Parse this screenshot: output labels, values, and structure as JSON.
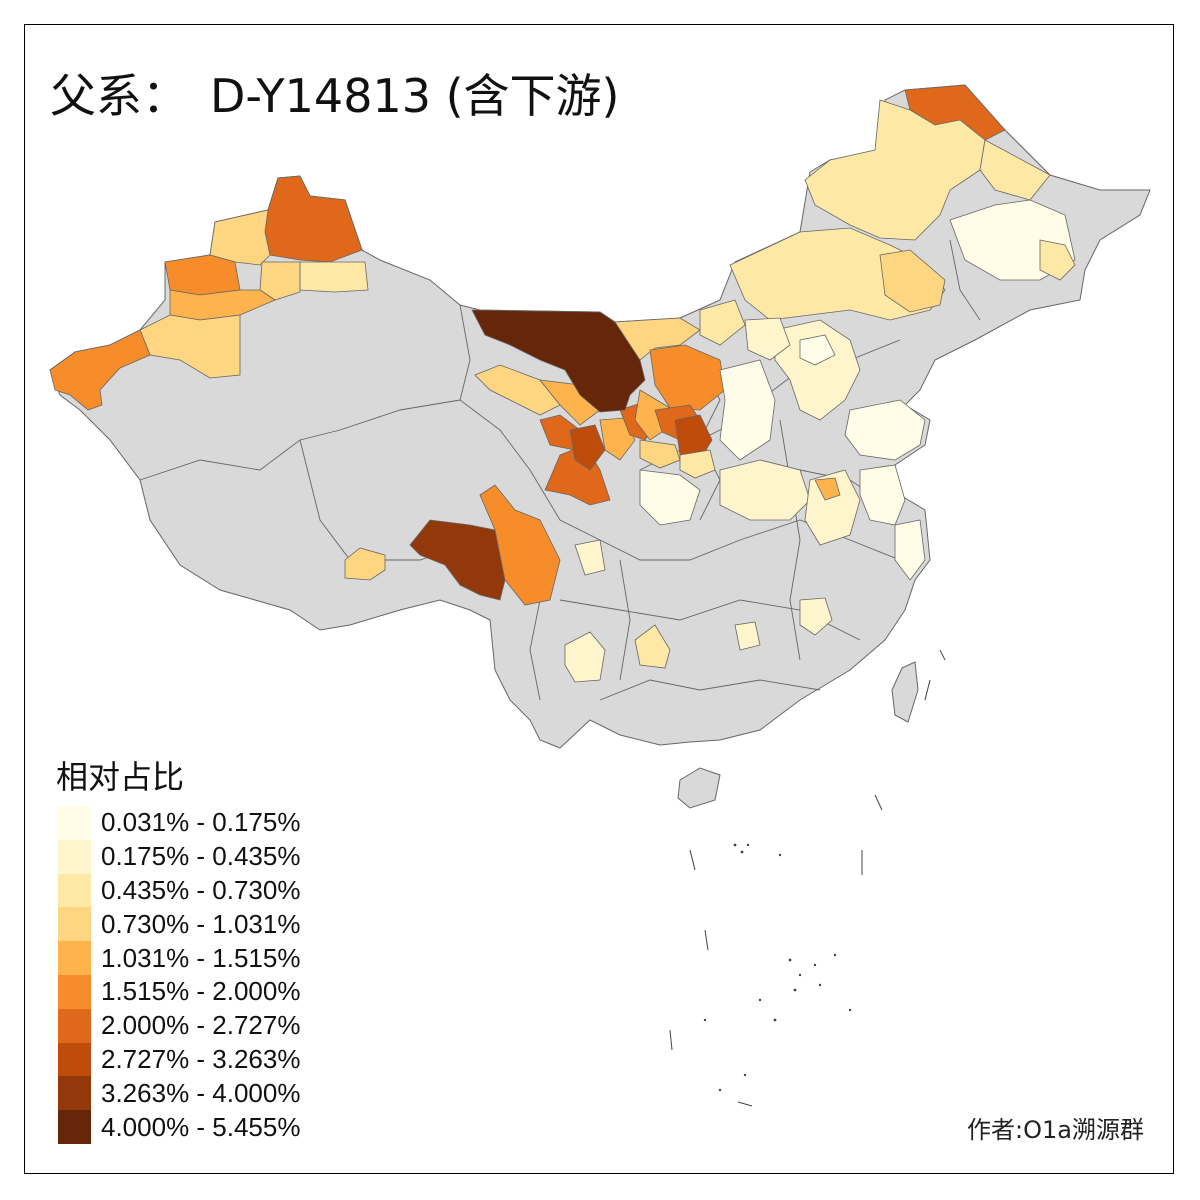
{
  "title": {
    "prefix": "父系：",
    "haplogroup": "D-Y14813 (含下游)"
  },
  "legend": {
    "title": "相对占比",
    "classes": [
      {
        "label": "0.031% - 0.175%",
        "color": "#fffde8"
      },
      {
        "label": "0.175% - 0.435%",
        "color": "#fff5cc"
      },
      {
        "label": "0.435% - 0.730%",
        "color": "#fee8a6"
      },
      {
        "label": "0.730% - 1.031%",
        "color": "#fed681"
      },
      {
        "label": "1.031% - 1.515%",
        "color": "#fdb44c"
      },
      {
        "label": "1.515% - 2.000%",
        "color": "#f68d2a"
      },
      {
        "label": "2.000% - 2.727%",
        "color": "#e0681a"
      },
      {
        "label": "2.727% - 3.263%",
        "color": "#c04c0c"
      },
      {
        "label": "3.263% - 4.000%",
        "color": "#93380b"
      },
      {
        "label": "4.000% - 5.455%",
        "color": "#66260a"
      }
    ]
  },
  "author": "作者:O1a溯源群",
  "colors": {
    "no_data": "#d9d9d9",
    "border": "#666666",
    "frame": "#000000"
  }
}
